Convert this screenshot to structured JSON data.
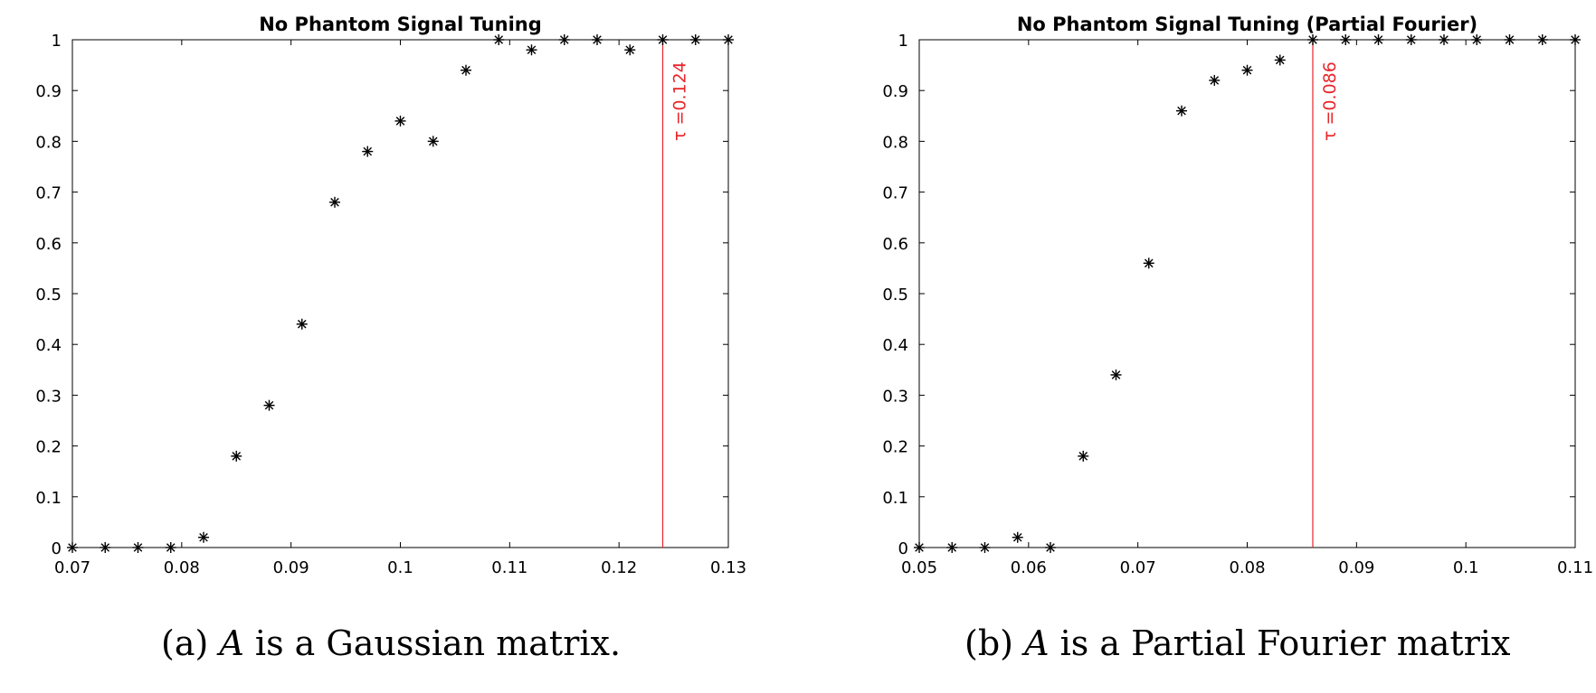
{
  "chart_data": [
    {
      "type": "scatter",
      "title": "No Phantom Signal Tuning",
      "xlabel": "",
      "ylabel": "",
      "xlim": [
        0.07,
        0.13
      ],
      "ylim": [
        0,
        1
      ],
      "x_ticks": [
        "0.07",
        "0.08",
        "0.09",
        "0.1",
        "0.11",
        "0.12",
        "0.13"
      ],
      "y_ticks": [
        "0",
        "0.1",
        "0.2",
        "0.3",
        "0.4",
        "0.5",
        "0.6",
        "0.7",
        "0.8",
        "0.9",
        "1"
      ],
      "marker": "*",
      "marker_color": "#000000",
      "grid": false,
      "series": [
        {
          "x": [
            0.07,
            0.073,
            0.076,
            0.079,
            0.082,
            0.085,
            0.088,
            0.091,
            0.094,
            0.097,
            0.1,
            0.103,
            0.106,
            0.109,
            0.112,
            0.115,
            0.118,
            0.121,
            0.124,
            0.127,
            0.13
          ],
          "y": [
            0,
            0,
            0,
            0,
            0.02,
            0.18,
            0.28,
            0.44,
            0.68,
            0.78,
            0.84,
            0.8,
            0.94,
            1,
            0.98,
            1,
            1,
            0.98,
            1,
            1,
            1
          ]
        }
      ],
      "vline": {
        "x": 0.124,
        "label": "τ =0.124",
        "color": "#e8262b"
      }
    },
    {
      "type": "scatter",
      "title": "No Phantom Signal Tuning (Partial Fourier)",
      "xlabel": "",
      "ylabel": "",
      "xlim": [
        0.05,
        0.11
      ],
      "ylim": [
        0,
        1
      ],
      "x_ticks": [
        "0.05",
        "0.06",
        "0.07",
        "0.08",
        "0.09",
        "0.1",
        "0.11"
      ],
      "y_ticks": [
        "0",
        "0.1",
        "0.2",
        "0.3",
        "0.4",
        "0.5",
        "0.6",
        "0.7",
        "0.8",
        "0.9",
        "1"
      ],
      "marker": "*",
      "marker_color": "#000000",
      "grid": false,
      "series": [
        {
          "x": [
            0.05,
            0.053,
            0.056,
            0.059,
            0.062,
            0.065,
            0.068,
            0.071,
            0.074,
            0.077,
            0.08,
            0.083,
            0.086,
            0.089,
            0.092,
            0.095,
            0.098,
            0.101,
            0.104,
            0.107,
            0.11
          ],
          "y": [
            0,
            0,
            0,
            0.02,
            0,
            0.18,
            0.34,
            0.56,
            0.86,
            0.92,
            0.94,
            0.96,
            1,
            1,
            1,
            1,
            1,
            1,
            1,
            1,
            1
          ]
        }
      ],
      "vline": {
        "x": 0.086,
        "label": "τ =0.086",
        "color": "#e8262b"
      }
    }
  ],
  "captions": {
    "a": {
      "prefix": "(a) ",
      "symbol": "A",
      "rest": " is a Gaussian matrix."
    },
    "b": {
      "prefix": "(b) ",
      "symbol": "A",
      "rest": " is a Partial Fourier matrix"
    }
  }
}
